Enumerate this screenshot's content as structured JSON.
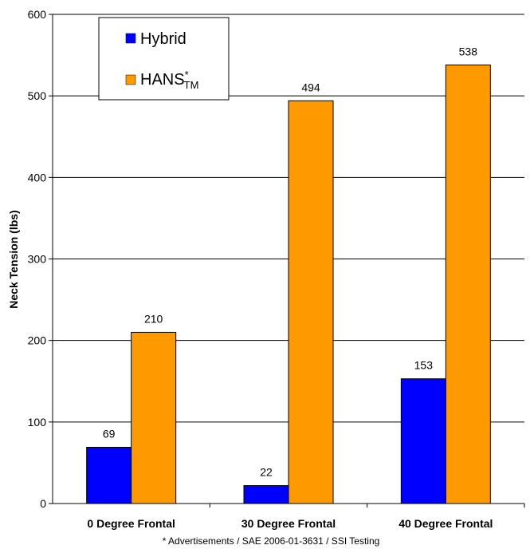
{
  "chart_data": {
    "type": "bar",
    "categories": [
      "0 Degree Frontal",
      "30 Degree Frontal",
      "40 Degree Frontal"
    ],
    "series": [
      {
        "name": "Hybrid",
        "values": [
          69,
          22,
          153
        ],
        "color": "#0000ff"
      },
      {
        "name": "HANS*TM",
        "name_main": "HANS",
        "name_sup": "*",
        "name_sub": "TM",
        "values": [
          210,
          494,
          538
        ],
        "color": "#ff9900"
      }
    ],
    "ylabel": "Neck Tension (lbs)",
    "xlabel": "",
    "title": "",
    "ylim": [
      0,
      600
    ],
    "yticks": [
      0,
      100,
      200,
      300,
      400,
      500,
      600
    ],
    "grid": true,
    "legend_position": "top-left",
    "footnote": "* Advertisements / SAE 2006-01-3631 / SSI Testing"
  }
}
